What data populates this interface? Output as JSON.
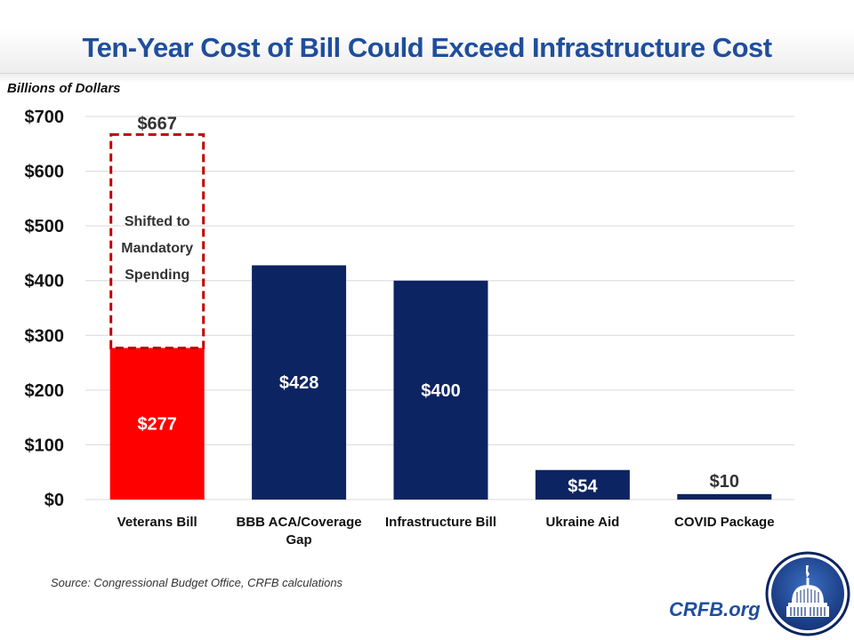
{
  "header": {
    "title": "Ten-Year Cost of Bill Could Exceed Infrastructure Cost",
    "units_label": "Billions of Dollars"
  },
  "footer": {
    "source": "Source: Congressional Budget Office, CRFB calculations",
    "brand": "CRFB.org",
    "logo_icon": "capitol-dome-icon"
  },
  "colors": {
    "title": "#1f4e9c",
    "navy": "#0c2461",
    "red": "#ff0000",
    "dashed_outline": "#c00000",
    "gridline": "#d9d9d9"
  },
  "chart_data": {
    "type": "bar",
    "title": "Ten-Year Cost of Bill Could Exceed Infrastructure Cost",
    "xlabel": "",
    "ylabel": "Billions of Dollars",
    "ylim": [
      0,
      700
    ],
    "yticks": [
      0,
      100,
      200,
      300,
      400,
      500,
      600,
      700
    ],
    "ytick_labels": [
      "$0",
      "$100",
      "$200",
      "$300",
      "$400",
      "$500",
      "$600",
      "$700"
    ],
    "grid": true,
    "categories": [
      "Veterans Bill",
      "BBB ACA/Coverage Gap",
      "Infrastructure Bill",
      "Ukraine Aid",
      "COVID Package"
    ],
    "category_label_lines": [
      [
        "Veterans Bill"
      ],
      [
        "BBB ACA/Coverage",
        "Gap"
      ],
      [
        "Infrastructure Bill"
      ],
      [
        "Ukraine Aid"
      ],
      [
        "COVID Package"
      ]
    ],
    "values": [
      277,
      428,
      400,
      54,
      10
    ],
    "value_labels": [
      "$277",
      "$428",
      "$400",
      "$54",
      "$10"
    ],
    "bar_colors": [
      "#ff0000",
      "#0c2461",
      "#0c2461",
      "#0c2461",
      "#0c2461"
    ],
    "annotation": {
      "category": "Veterans Bill",
      "from": 277,
      "to": 667,
      "total_label": "$667",
      "text_lines": [
        "Shifted to",
        "Mandatory",
        "Spending"
      ],
      "style": "dashed-outline"
    }
  }
}
